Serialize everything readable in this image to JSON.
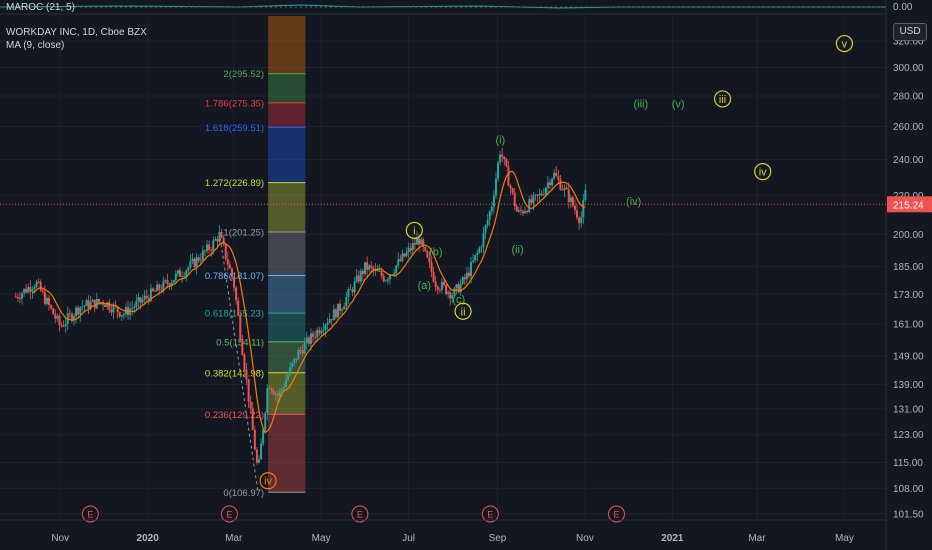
{
  "header": {
    "indicator_pane": "MAROC (21, 5)",
    "title": "WORKDAY INC, 1D, Cboe BZX",
    "ma_label": "MA (9, close)",
    "currency": "USD",
    "indicator_value": "0.00"
  },
  "colors": {
    "background": "#131722",
    "up": "#26a69a",
    "down": "#ef5350",
    "ma": "#f57c00",
    "axis_text": "#b2b5be",
    "last_price_bg": "#ef5350"
  },
  "chart_data": {
    "type": "line",
    "title": "WORKDAY INC, 1D, Cboe BZX",
    "y_scale": "log",
    "ylim": [
      100,
      340
    ],
    "x_ticks": [
      "Nov",
      "2020",
      "Mar",
      "May",
      "Jul",
      "Sep",
      "Nov",
      "2021",
      "Mar",
      "May"
    ],
    "y_ticks": [
      101.5,
      108.0,
      115.0,
      123.0,
      131.0,
      139.0,
      149.0,
      161.0,
      173.0,
      185.0,
      200.0,
      220.0,
      240.0,
      260.0,
      280.0,
      300.0,
      320.0
    ],
    "y_tick_labels": [
      "101.50",
      "108.00",
      "115.00",
      "123.00",
      "131.00",
      "139.00",
      "149.00",
      "161.00",
      "173.00",
      "185.00",
      "200.00",
      "220.00",
      "240.00",
      "260.00",
      "280.00",
      "300.00",
      "320.00"
    ],
    "last_price": 215.24,
    "last_price_label": "215.24",
    "series": [
      {
        "x": [
          "2019-10-01",
          "2019-10-15",
          "2019-11-01",
          "2019-11-15",
          "2019-12-01",
          "2019-12-15",
          "2020-01-01",
          "2020-01-15",
          "2020-02-01",
          "2020-02-15",
          "2020-02-20",
          "2020-03-01",
          "2020-03-10",
          "2020-03-18",
          "2020-03-25",
          "2020-04-01",
          "2020-04-15",
          "2020-05-01",
          "2020-05-15",
          "2020-06-01",
          "2020-06-15",
          "2020-07-01",
          "2020-07-08",
          "2020-07-20",
          "2020-08-01",
          "2020-08-10",
          "2020-08-20",
          "2020-08-28",
          "2020-09-03",
          "2020-09-15",
          "2020-10-01",
          "2020-10-10",
          "2020-10-20",
          "2020-10-29",
          "2020-11-02"
        ],
        "values": [
          172,
          178,
          160,
          168,
          170,
          165,
          172,
          178,
          186,
          195,
          200,
          178,
          140,
          112,
          140,
          135,
          150,
          160,
          168,
          185,
          180,
          192,
          198,
          178,
          173,
          180,
          194,
          215,
          246,
          210,
          220,
          232,
          220,
          207,
          224
        ]
      }
    ],
    "fib_levels": [
      {
        "label": "2(295.52)",
        "value": 295.52,
        "color": "#4caf50"
      },
      {
        "label": "1.786(275.35)",
        "value": 275.35,
        "color": "#f23645"
      },
      {
        "label": "1.618(259.51)",
        "value": 259.51,
        "color": "#2962ff"
      },
      {
        "label": "1.272(226.89)",
        "value": 226.89,
        "color": "#cddc39"
      },
      {
        "label": "1(201.25)",
        "value": 201.25,
        "color": "#9598a1"
      },
      {
        "label": "0.786(181.07)",
        "value": 181.07,
        "color": "#64b5f6"
      },
      {
        "label": "0.618(165.23)",
        "value": 165.23,
        "color": "#26a69a"
      },
      {
        "label": "0.5(154.11)",
        "value": 154.11,
        "color": "#66bb6a"
      },
      {
        "label": "0.382(142.98)",
        "value": 142.98,
        "color": "#cddc39"
      },
      {
        "label": "0.236(129.22)",
        "value": 129.22,
        "color": "#ef5350"
      },
      {
        "label": "0(106.97)",
        "value": 106.97,
        "color": "#9598a1"
      }
    ],
    "wave_labels": [
      {
        "text": "i",
        "x": "2020-07-05",
        "y": 202,
        "circled": true,
        "color": "#d5d52a"
      },
      {
        "text": "(b)",
        "x": "2020-07-20",
        "y": 192,
        "circled": false,
        "color": "#4caf50"
      },
      {
        "text": "(a)",
        "x": "2020-07-12",
        "y": 177,
        "circled": false,
        "color": "#4caf50"
      },
      {
        "text": "(c)",
        "x": "2020-08-05",
        "y": 171,
        "circled": false,
        "color": "#4caf50"
      },
      {
        "text": "ii",
        "x": "2020-08-08",
        "y": 166,
        "circled": true,
        "color": "#d5d52a"
      },
      {
        "text": "(i)",
        "x": "2020-09-03",
        "y": 252,
        "circled": false,
        "color": "#4caf50"
      },
      {
        "text": "(ii)",
        "x": "2020-09-15",
        "y": 193,
        "circled": false,
        "color": "#4caf50"
      },
      {
        "text": "(iii)",
        "x": "2020-12-10",
        "y": 275,
        "circled": false,
        "color": "#4caf50"
      },
      {
        "text": "(iv)",
        "x": "2020-12-05",
        "y": 217,
        "circled": false,
        "color": "#4caf50"
      },
      {
        "text": "(v)",
        "x": "2021-01-05",
        "y": 275,
        "circled": false,
        "color": "#4caf50"
      },
      {
        "text": "iii",
        "x": "2021-02-05",
        "y": 278,
        "circled": true,
        "color": "#d5d52a"
      },
      {
        "text": "iv",
        "x": "2021-03-05",
        "y": 233,
        "circled": true,
        "color": "#d5d52a"
      },
      {
        "text": "v",
        "x": "2021-05-01",
        "y": 318,
        "circled": true,
        "color": "#d5d52a"
      },
      {
        "text": "iv",
        "x": "2020-03-25",
        "y": 110,
        "circled": true,
        "color": "#f57c00"
      }
    ],
    "earnings_markers": [
      {
        "text": "E",
        "x": "2019-11-22"
      },
      {
        "text": "E",
        "x": "2020-02-27"
      },
      {
        "text": "E",
        "x": "2020-05-28"
      },
      {
        "text": "E",
        "x": "2020-08-27"
      },
      {
        "text": "E",
        "x": "2020-11-23"
      }
    ]
  }
}
